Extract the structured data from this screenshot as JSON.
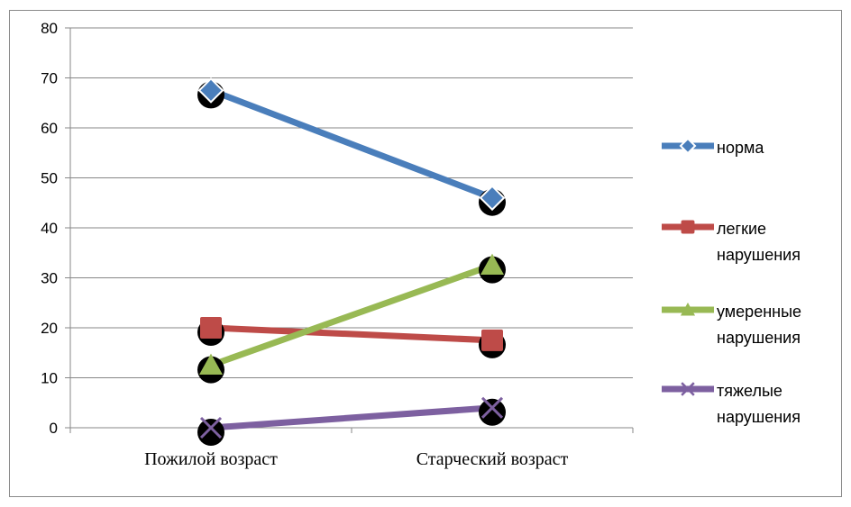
{
  "chart_data": {
    "type": "line",
    "title": "",
    "xlabel": "",
    "ylabel": "",
    "categories": [
      "Пожилой возраст",
      "Старческий возраст"
    ],
    "ylim": [
      0,
      80
    ],
    "yticks": [
      0,
      10,
      20,
      30,
      40,
      50,
      60,
      70,
      80
    ],
    "grid": true,
    "legend_position": "right",
    "series": [
      {
        "name": "норма",
        "legend_lines": [
          "норма"
        ],
        "values": [
          67.5,
          46.0
        ],
        "color": "#4a7ebb",
        "marker": "diamond"
      },
      {
        "name": "легкие нарушения",
        "legend_lines": [
          "легкие",
          "нарушения"
        ],
        "values": [
          20.0,
          17.5
        ],
        "color": "#be4b48",
        "marker": "square"
      },
      {
        "name": "умеренные нарушения",
        "legend_lines": [
          "умеренные",
          "нарушения"
        ],
        "values": [
          12.5,
          32.5
        ],
        "color": "#98b954",
        "marker": "triangle"
      },
      {
        "name": "тяжелые нарушения",
        "legend_lines": [
          "тяжелые",
          "нарушения"
        ],
        "values": [
          0.0,
          4.0
        ],
        "color": "#7d60a0",
        "marker": "x"
      }
    ]
  }
}
